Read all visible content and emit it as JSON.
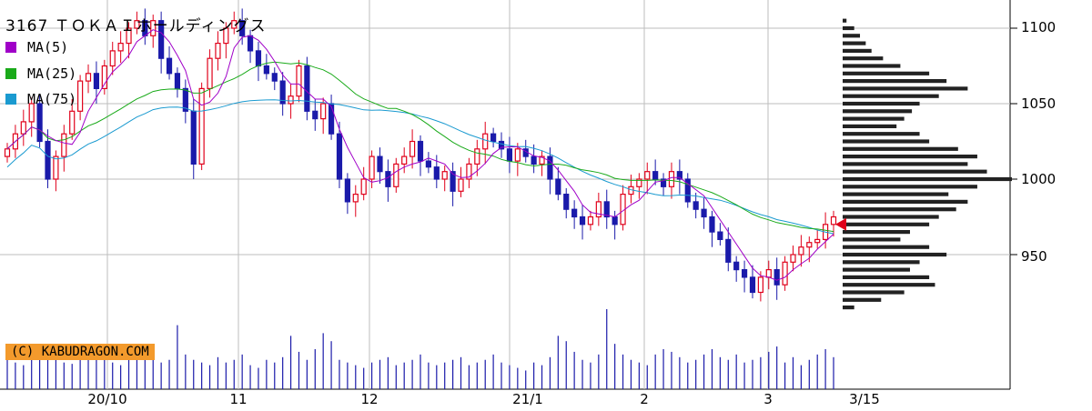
{
  "chart_data": {
    "type": "candlestick",
    "title": "3167 ＴＯＫＡＩホールディングス",
    "watermark": "(C) KABUDRAGON.COM",
    "x_tick_labels": [
      "20/10",
      "11",
      "12",
      "21/1",
      "2",
      "3",
      "3/15"
    ],
    "y_ticks": [
      950,
      1000,
      1050,
      1100
    ],
    "y_range": [
      900,
      1120
    ],
    "legend": [
      {
        "label": "MA(5)",
        "color": "#a000c8"
      },
      {
        "label": "MA(25)",
        "color": "#1aaa1a"
      },
      {
        "label": "MA(75)",
        "color": "#1a9ad0"
      }
    ],
    "colors": {
      "up": "#e0001a",
      "down": "#1a1aaa",
      "grid": "#bdbdbd",
      "profile": "#222222",
      "marker": "#e0001a"
    },
    "close": [
      1020,
      1030,
      1038,
      1050,
      1025,
      1000,
      1015,
      1030,
      1045,
      1065,
      1070,
      1060,
      1075,
      1085,
      1090,
      1100,
      1105,
      1095,
      1105,
      1080,
      1070,
      1060,
      1045,
      1010,
      1060,
      1080,
      1090,
      1100,
      1105,
      1095,
      1085,
      1075,
      1070,
      1065,
      1050,
      1055,
      1075,
      1045,
      1040,
      1050,
      1030,
      1000,
      985,
      990,
      1000,
      1015,
      1005,
      995,
      1010,
      1015,
      1025,
      1012,
      1008,
      1000,
      1005,
      992,
      1000,
      1010,
      1020,
      1030,
      1025,
      1020,
      1012,
      1020,
      1015,
      1010,
      1015,
      1000,
      990,
      980,
      975,
      970,
      975,
      985,
      975,
      970,
      990,
      995,
      1000,
      1005,
      1000,
      995,
      1005,
      1000,
      985,
      980,
      975,
      965,
      960,
      945,
      940,
      935,
      925,
      935,
      940,
      930,
      945,
      950,
      955,
      958,
      960,
      970,
      975
    ],
    "volume": [
      22,
      20,
      18,
      25,
      22,
      30,
      26,
      20,
      19,
      24,
      28,
      32,
      25,
      20,
      18,
      22,
      26,
      30,
      24,
      20,
      22,
      48,
      26,
      22,
      20,
      18,
      24,
      20,
      22,
      26,
      18,
      16,
      22,
      20,
      24,
      40,
      28,
      22,
      30,
      42,
      36,
      22,
      20,
      18,
      16,
      20,
      22,
      24,
      18,
      20,
      22,
      26,
      20,
      18,
      20,
      22,
      24,
      18,
      20,
      22,
      26,
      20,
      18,
      16,
      14,
      20,
      18,
      24,
      40,
      36,
      28,
      22,
      20,
      26,
      60,
      34,
      26,
      22,
      20,
      18,
      26,
      30,
      28,
      24,
      20,
      22,
      26,
      30,
      24,
      22,
      26,
      20,
      22,
      24,
      28,
      32,
      20,
      24,
      18,
      22,
      26,
      30,
      24
    ],
    "price_profile": [
      [
        1105,
        4
      ],
      [
        1100,
        12
      ],
      [
        1095,
        18
      ],
      [
        1090,
        24
      ],
      [
        1085,
        30
      ],
      [
        1080,
        42
      ],
      [
        1075,
        60
      ],
      [
        1070,
        90
      ],
      [
        1065,
        108
      ],
      [
        1060,
        130
      ],
      [
        1055,
        100
      ],
      [
        1050,
        80
      ],
      [
        1045,
        72
      ],
      [
        1040,
        64
      ],
      [
        1035,
        56
      ],
      [
        1030,
        80
      ],
      [
        1025,
        90
      ],
      [
        1020,
        120
      ],
      [
        1015,
        140
      ],
      [
        1010,
        130
      ],
      [
        1005,
        150
      ],
      [
        1000,
        176
      ],
      [
        995,
        140
      ],
      [
        990,
        110
      ],
      [
        985,
        130
      ],
      [
        980,
        118
      ],
      [
        975,
        100
      ],
      [
        970,
        90
      ],
      [
        965,
        70
      ],
      [
        960,
        60
      ],
      [
        955,
        90
      ],
      [
        950,
        108
      ],
      [
        945,
        80
      ],
      [
        940,
        70
      ],
      [
        935,
        90
      ],
      [
        930,
        96
      ],
      [
        925,
        64
      ],
      [
        920,
        40
      ],
      [
        915,
        12
      ]
    ],
    "current_marker": 970,
    "date_axis_note": "daily bars"
  }
}
